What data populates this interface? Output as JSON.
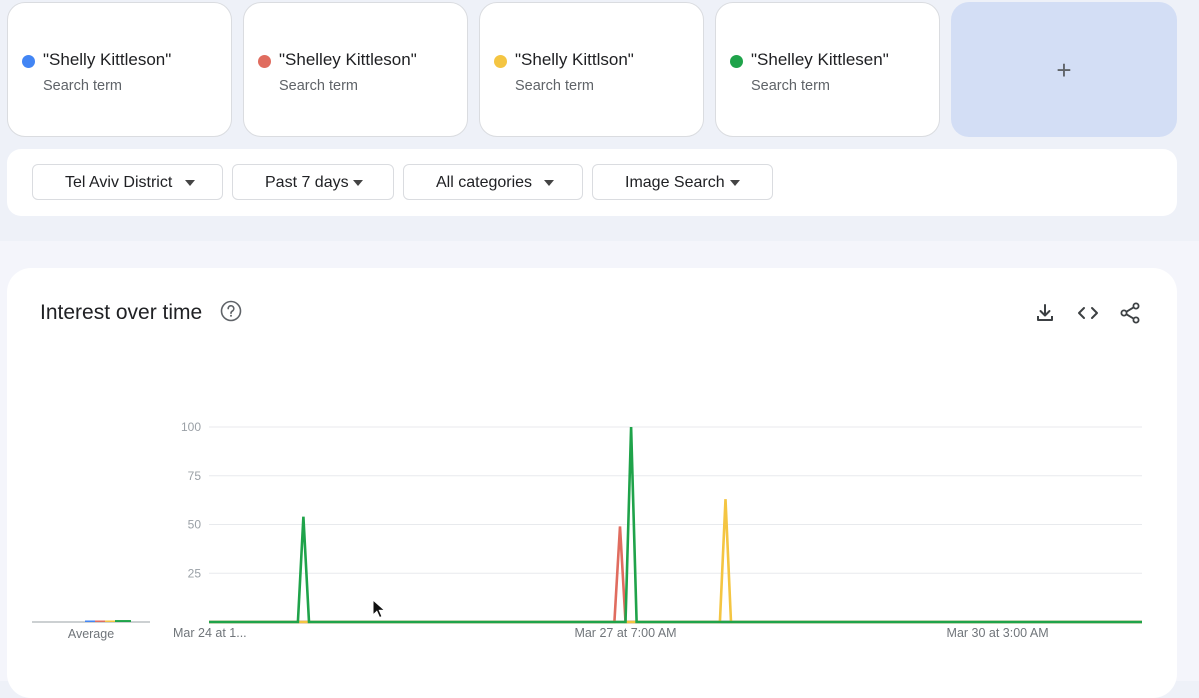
{
  "terms": [
    {
      "name": "\"Shelly Kittleson\"",
      "sub": "Search term",
      "color": "#4285f4"
    },
    {
      "name": "\"Shelley Kittleson\"",
      "sub": "Search term",
      "color": "#e06c5f"
    },
    {
      "name": "\"Shelly Kittlson\"",
      "sub": "Search term",
      "color": "#f4c542"
    },
    {
      "name": "\"Shelley Kittlesen\"",
      "sub": "Search term",
      "color": "#1fa34a"
    }
  ],
  "add_label": "+",
  "filters": {
    "region": "Tel Aviv District",
    "time": "Past 7 days",
    "category": "All categories",
    "search_type": "Image Search"
  },
  "chart_title": "Interest over time",
  "average_label": "Average",
  "icons": {
    "help": "help-circle-icon",
    "download": "download-icon",
    "embed": "embed-code-icon",
    "share": "share-icon"
  },
  "chart_data": {
    "type": "line",
    "y_ticks": [
      "100",
      "75",
      "50",
      "25"
    ],
    "ylim": [
      0,
      100
    ],
    "x_tick_labels": [
      "Mar 24 at 1...",
      "Mar 27 at 7:00 AM",
      "Mar 30 at 3:00 AM"
    ],
    "x_range": [
      0,
      168
    ],
    "series": [
      {
        "color": "#4285f4",
        "points": [
          [
            0,
            0
          ],
          [
            168,
            0
          ]
        ]
      },
      {
        "color": "#e06c5f",
        "points": [
          [
            0,
            0
          ],
          [
            73,
            0
          ],
          [
            74,
            49
          ],
          [
            75,
            0
          ],
          [
            168,
            0
          ]
        ]
      },
      {
        "color": "#f4c542",
        "points": [
          [
            0,
            0
          ],
          [
            92,
            0
          ],
          [
            93,
            63
          ],
          [
            94,
            0
          ],
          [
            168,
            0
          ]
        ]
      },
      {
        "color": "#1fa34a",
        "points": [
          [
            0,
            0
          ],
          [
            16,
            0
          ],
          [
            17,
            54
          ],
          [
            18,
            0
          ],
          [
            75,
            0
          ],
          [
            76,
            100
          ],
          [
            77,
            0
          ],
          [
            168,
            0
          ]
        ]
      }
    ],
    "average": [
      {
        "color": "#4285f4",
        "value": 0
      },
      {
        "color": "#e06c5f",
        "value": 0
      },
      {
        "color": "#f4c542",
        "value": 0
      },
      {
        "color": "#1fa34a",
        "value": 1
      }
    ]
  }
}
